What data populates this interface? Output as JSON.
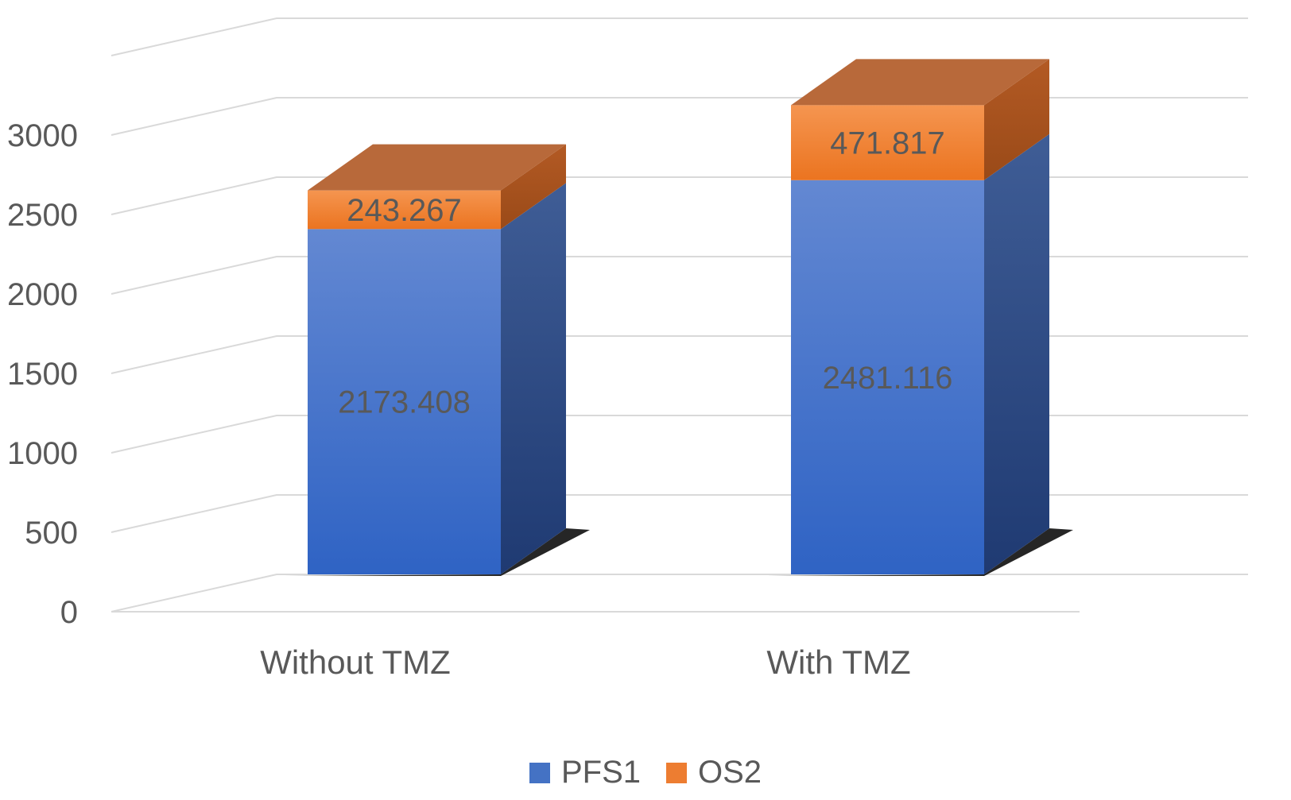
{
  "chart_data": {
    "type": "bar",
    "stacked": true,
    "three_d": true,
    "title": "",
    "xlabel": "",
    "ylabel": "",
    "categories": [
      "Without TMZ",
      "With TMZ"
    ],
    "series": [
      {
        "name": "PFS1",
        "values": [
          2173.408,
          2481.116
        ],
        "labels": [
          "2173.408",
          "2481.116"
        ],
        "color": "#4472C4"
      },
      {
        "name": "OS2",
        "values": [
          243.267,
          471.817
        ],
        "labels": [
          "243.267",
          "471.817"
        ],
        "color": "#ED7D31"
      }
    ],
    "ylim": [
      0,
      3000
    ],
    "yticks": [
      "0",
      "500",
      "1000",
      "1500",
      "2000",
      "2500",
      "3000"
    ],
    "grid": true,
    "legend_position": "bottom"
  }
}
